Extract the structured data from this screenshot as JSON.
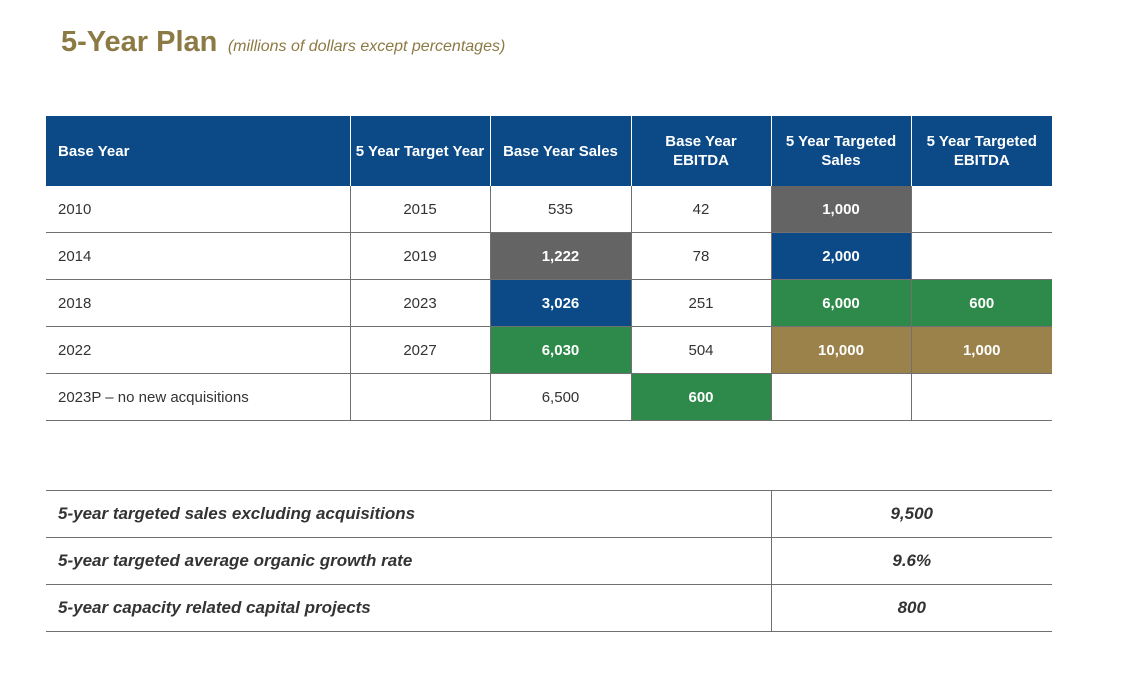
{
  "title": "5-Year Plan",
  "subtitle": "(millions of dollars except percentages)",
  "table": {
    "headers": [
      "Base Year",
      "5 Year Target Year",
      "Base Year Sales",
      "Base Year EBITDA",
      "5 Year Targeted Sales",
      "5 Year Targeted EBITDA"
    ],
    "rows": [
      [
        "2010",
        "2015",
        "535",
        "42",
        "1,000",
        ""
      ],
      [
        "2014",
        "2019",
        "1,222",
        "78",
        "2,000",
        ""
      ],
      [
        "2018",
        "2023",
        "3,026",
        "251",
        "6,000",
        "600"
      ],
      [
        "2022",
        "2027",
        "6,030",
        "504",
        "10,000",
        "1,000"
      ],
      [
        "2023P – no new acquisitions",
        "",
        "6,500",
        "600",
        "",
        ""
      ]
    ]
  },
  "highlight_colors": {
    "gray": "#646464",
    "blue": "#0B4A87",
    "green": "#2E8A4A",
    "gold": "#9A824A"
  },
  "summary": [
    {
      "label": "5-year targeted sales excluding acquisitions",
      "value": "9,500"
    },
    {
      "label": "5-year targeted average organic growth rate",
      "value": "9.6%"
    },
    {
      "label": "5-year capacity related capital projects",
      "value": "800"
    }
  ]
}
